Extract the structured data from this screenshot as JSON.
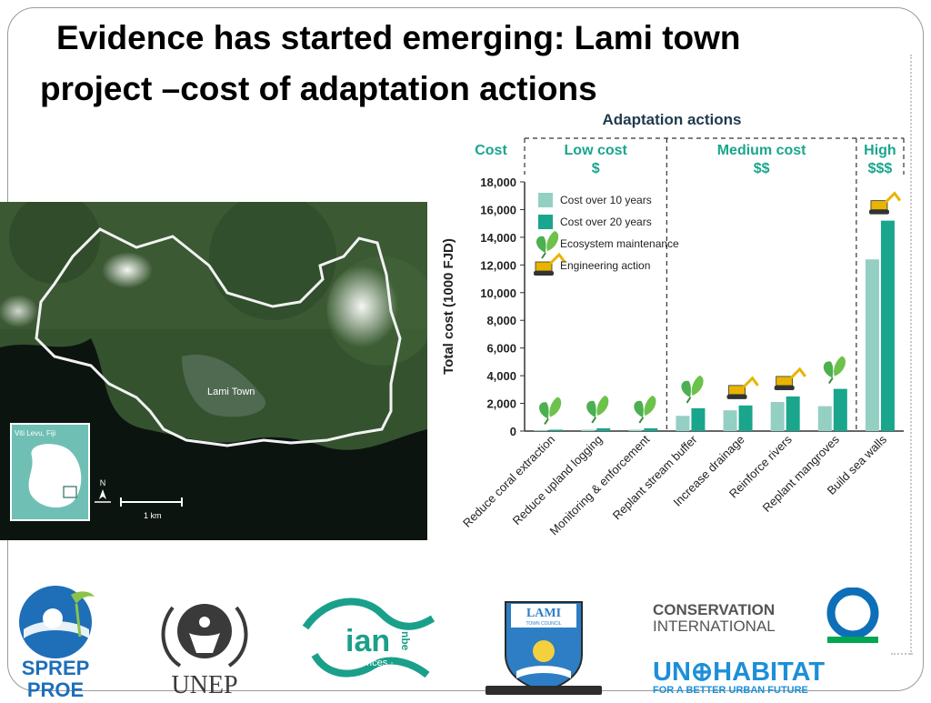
{
  "slide": {
    "title_line1": "Evidence has started emerging: Lami town",
    "title_line2": "project –cost  of adaptation actions"
  },
  "map": {
    "town_label": "Lami Town",
    "inset_label": "Viti Levu, Fiji",
    "north_label": "N",
    "scale_label": "1 km"
  },
  "chart_data": {
    "type": "bar",
    "title": "Adaptation actions",
    "ylabel": "Total cost (1000 FJD)",
    "ylim": [
      0,
      18000
    ],
    "yticks": [
      "0",
      "2,000",
      "4,000",
      "6,000",
      "8,000",
      "10,000",
      "12,000",
      "14,000",
      "16,000",
      "18,000"
    ],
    "cost_header": "Cost",
    "cost_groups": [
      {
        "label": "Low cost",
        "symbol": "$"
      },
      {
        "label": "Medium cost",
        "symbol": "$$"
      },
      {
        "label": "High",
        "symbol": "$$$"
      }
    ],
    "categories": [
      "Reduce coral extraction",
      "Reduce upland logging",
      "Monitoring & enforcement",
      "Replant stream  buffer",
      "Increase drainage",
      "Reinforce rivers",
      "Replant mangroves",
      "Build sea walls"
    ],
    "action_type": [
      "ecosystem",
      "ecosystem",
      "ecosystem",
      "ecosystem",
      "engineering",
      "engineering",
      "ecosystem",
      "engineering"
    ],
    "series": [
      {
        "name": "Cost over 10 years",
        "color": "#94cfc4",
        "values": [
          50,
          100,
          100,
          1100,
          1500,
          2100,
          1800,
          12400
        ]
      },
      {
        "name": "Cost over 20 years",
        "color": "#1aa58d",
        "values": [
          100,
          200,
          200,
          1650,
          1850,
          2500,
          3050,
          15200
        ]
      }
    ],
    "legend": [
      "Cost over 10 years",
      "Cost over 20 years",
      "Ecosystem maintenance",
      "Engineering action"
    ],
    "legend_position": "top-left",
    "colors": {
      "accent": "#1aa58d",
      "leaf": "#4caf50",
      "excavator": "#e8b400"
    }
  },
  "logos": {
    "sprep_line1": "SPREP",
    "sprep_line2": "PROE",
    "unep": "UNEP",
    "ian_main": "ian",
    "ian_side": "nbe",
    "ian_sub": "· umces ·",
    "lami_title": "LAMI",
    "lami_sub": "TOWN COUNCIL",
    "ci_line1": "CONSERVATION",
    "ci_line2": "INTERNATIONAL",
    "unh_main": "UN⊕HABITAT",
    "unh_sub": "FOR A BETTER URBAN FUTURE",
    "colors": {
      "sprep": "#1e6fb8",
      "unep": "#3a3a3a",
      "ian": "#1aa08a",
      "ci_blue": "#0d6fb8",
      "ci_green": "#00a651",
      "unh": "#1d8fd8"
    }
  }
}
